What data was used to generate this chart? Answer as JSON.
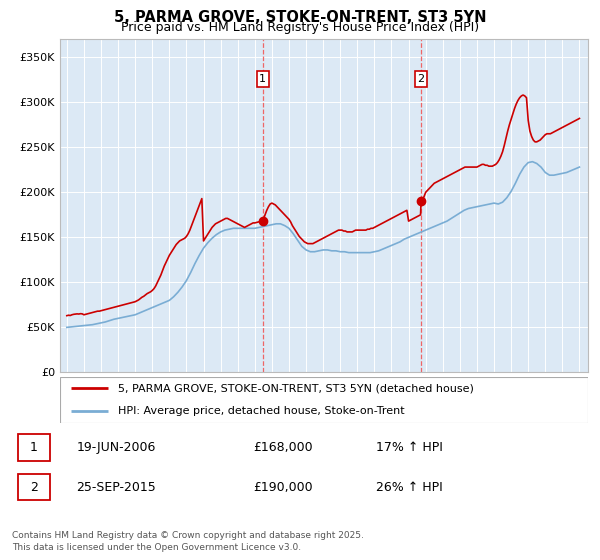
{
  "title": "5, PARMA GROVE, STOKE-ON-TRENT, ST3 5YN",
  "subtitle": "Price paid vs. HM Land Registry's House Price Index (HPI)",
  "ylim": [
    0,
    370000
  ],
  "yticks": [
    0,
    50000,
    100000,
    150000,
    200000,
    250000,
    300000,
    350000
  ],
  "ytick_labels": [
    "£0",
    "£50K",
    "£100K",
    "£150K",
    "£200K",
    "£250K",
    "£300K",
    "£350K"
  ],
  "xlim_start": 1994.6,
  "xlim_end": 2025.5,
  "plot_bg": "#dce9f5",
  "red_color": "#cc0000",
  "blue_color": "#7aadd4",
  "vline1_x": 2006.47,
  "vline2_x": 2015.73,
  "marker1_x": 2006.47,
  "marker1_y": 168000,
  "marker2_x": 2015.73,
  "marker2_y": 190000,
  "label1": "1",
  "label2": "2",
  "legend_red": "5, PARMA GROVE, STOKE-ON-TRENT, ST3 5YN (detached house)",
  "legend_blue": "HPI: Average price, detached house, Stoke-on-Trent",
  "table_row1": [
    "1",
    "19-JUN-2006",
    "£168,000",
    "17% ↑ HPI"
  ],
  "table_row2": [
    "2",
    "25-SEP-2015",
    "£190,000",
    "26% ↑ HPI"
  ],
  "footer": "Contains HM Land Registry data © Crown copyright and database right 2025.\nThis data is licensed under the Open Government Licence v3.0.",
  "hpi_years": [
    1995.0,
    1995.25,
    1995.5,
    1995.75,
    1996.0,
    1996.25,
    1996.5,
    1996.75,
    1997.0,
    1997.25,
    1997.5,
    1997.75,
    1998.0,
    1998.25,
    1998.5,
    1998.75,
    1999.0,
    1999.25,
    1999.5,
    1999.75,
    2000.0,
    2000.25,
    2000.5,
    2000.75,
    2001.0,
    2001.25,
    2001.5,
    2001.75,
    2002.0,
    2002.25,
    2002.5,
    2002.75,
    2003.0,
    2003.25,
    2003.5,
    2003.75,
    2004.0,
    2004.25,
    2004.5,
    2004.75,
    2005.0,
    2005.25,
    2005.5,
    2005.75,
    2006.0,
    2006.25,
    2006.5,
    2006.75,
    2007.0,
    2007.25,
    2007.5,
    2007.75,
    2008.0,
    2008.25,
    2008.5,
    2008.75,
    2009.0,
    2009.25,
    2009.5,
    2009.75,
    2010.0,
    2010.25,
    2010.5,
    2010.75,
    2011.0,
    2011.25,
    2011.5,
    2011.75,
    2012.0,
    2012.25,
    2012.5,
    2012.75,
    2013.0,
    2013.25,
    2013.5,
    2013.75,
    2014.0,
    2014.25,
    2014.5,
    2014.75,
    2015.0,
    2015.25,
    2015.5,
    2015.75,
    2016.0,
    2016.25,
    2016.5,
    2016.75,
    2017.0,
    2017.25,
    2017.5,
    2017.75,
    2018.0,
    2018.25,
    2018.5,
    2018.75,
    2019.0,
    2019.25,
    2019.5,
    2019.75,
    2020.0,
    2020.25,
    2020.5,
    2020.75,
    2021.0,
    2021.25,
    2021.5,
    2021.75,
    2022.0,
    2022.25,
    2022.5,
    2022.75,
    2023.0,
    2023.25,
    2023.5,
    2023.75,
    2024.0,
    2024.25,
    2024.5,
    2024.75,
    2025.0
  ],
  "hpi_values": [
    50000,
    50500,
    51000,
    51500,
    52000,
    52500,
    53000,
    54000,
    55000,
    56000,
    57500,
    59000,
    60000,
    61000,
    62000,
    63000,
    64000,
    66000,
    68000,
    70000,
    72000,
    74000,
    76000,
    78000,
    80000,
    84000,
    89000,
    95000,
    102000,
    111000,
    121000,
    130000,
    138000,
    144000,
    149000,
    153000,
    156000,
    158000,
    159000,
    160000,
    160000,
    160000,
    160000,
    160000,
    160000,
    161000,
    162000,
    163000,
    164000,
    165000,
    165000,
    163000,
    160000,
    154000,
    147000,
    140000,
    136000,
    134000,
    134000,
    135000,
    136000,
    136000,
    135000,
    135000,
    134000,
    134000,
    133000,
    133000,
    133000,
    133000,
    133000,
    133000,
    134000,
    135000,
    137000,
    139000,
    141000,
    143000,
    145000,
    148000,
    150000,
    152000,
    154000,
    156000,
    158000,
    160000,
    162000,
    164000,
    166000,
    168000,
    171000,
    174000,
    177000,
    180000,
    182000,
    183000,
    184000,
    185000,
    186000,
    187000,
    188000,
    187000,
    189000,
    194000,
    201000,
    210000,
    220000,
    228000,
    233000,
    234000,
    232000,
    228000,
    222000,
    219000,
    219000,
    220000,
    221000,
    222000,
    224000,
    226000,
    228000
  ],
  "red_years": [
    1995.0,
    1995.1,
    1995.2,
    1995.3,
    1995.4,
    1995.5,
    1995.6,
    1995.7,
    1995.8,
    1995.9,
    1996.0,
    1996.1,
    1996.2,
    1996.3,
    1996.4,
    1996.5,
    1996.6,
    1996.7,
    1996.8,
    1996.9,
    1997.0,
    1997.1,
    1997.2,
    1997.3,
    1997.4,
    1997.5,
    1997.6,
    1997.7,
    1997.8,
    1997.9,
    1998.0,
    1998.1,
    1998.2,
    1998.3,
    1998.4,
    1998.5,
    1998.6,
    1998.7,
    1998.8,
    1998.9,
    1999.0,
    1999.1,
    1999.2,
    1999.3,
    1999.4,
    1999.5,
    1999.6,
    1999.7,
    1999.8,
    1999.9,
    2000.0,
    2000.1,
    2000.2,
    2000.3,
    2000.4,
    2000.5,
    2000.6,
    2000.7,
    2000.8,
    2000.9,
    2001.0,
    2001.1,
    2001.2,
    2001.3,
    2001.4,
    2001.5,
    2001.6,
    2001.7,
    2001.8,
    2001.9,
    2002.0,
    2002.1,
    2002.2,
    2002.3,
    2002.4,
    2002.5,
    2002.6,
    2002.7,
    2002.8,
    2002.9,
    2003.0,
    2003.1,
    2003.2,
    2003.3,
    2003.4,
    2003.5,
    2003.6,
    2003.7,
    2003.8,
    2003.9,
    2004.0,
    2004.1,
    2004.2,
    2004.3,
    2004.4,
    2004.5,
    2004.6,
    2004.7,
    2004.8,
    2004.9,
    2005.0,
    2005.1,
    2005.2,
    2005.3,
    2005.4,
    2005.5,
    2005.6,
    2005.7,
    2005.8,
    2005.9,
    2006.0,
    2006.1,
    2006.2,
    2006.3,
    2006.4,
    2006.47,
    2006.6,
    2006.7,
    2006.8,
    2006.9,
    2007.0,
    2007.1,
    2007.2,
    2007.3,
    2007.4,
    2007.5,
    2007.6,
    2007.7,
    2007.8,
    2007.9,
    2008.0,
    2008.1,
    2008.2,
    2008.3,
    2008.4,
    2008.5,
    2008.6,
    2008.7,
    2008.8,
    2008.9,
    2009.0,
    2009.1,
    2009.2,
    2009.3,
    2009.4,
    2009.5,
    2009.6,
    2009.7,
    2009.8,
    2009.9,
    2010.0,
    2010.1,
    2010.2,
    2010.3,
    2010.4,
    2010.5,
    2010.6,
    2010.7,
    2010.8,
    2010.9,
    2011.0,
    2011.1,
    2011.2,
    2011.3,
    2011.4,
    2011.5,
    2011.6,
    2011.7,
    2011.8,
    2011.9,
    2012.0,
    2012.1,
    2012.2,
    2012.3,
    2012.4,
    2012.5,
    2012.6,
    2012.7,
    2012.8,
    2012.9,
    2013.0,
    2013.1,
    2013.2,
    2013.3,
    2013.4,
    2013.5,
    2013.6,
    2013.7,
    2013.8,
    2013.9,
    2014.0,
    2014.1,
    2014.2,
    2014.3,
    2014.4,
    2014.5,
    2014.6,
    2014.7,
    2014.8,
    2014.9,
    2015.0,
    2015.1,
    2015.2,
    2015.3,
    2015.4,
    2015.5,
    2015.6,
    2015.7,
    2015.73,
    2015.9,
    2016.0,
    2016.1,
    2016.2,
    2016.3,
    2016.4,
    2016.5,
    2016.6,
    2016.7,
    2016.8,
    2016.9,
    2017.0,
    2017.1,
    2017.2,
    2017.3,
    2017.4,
    2017.5,
    2017.6,
    2017.7,
    2017.8,
    2017.9,
    2018.0,
    2018.1,
    2018.2,
    2018.3,
    2018.4,
    2018.5,
    2018.6,
    2018.7,
    2018.8,
    2018.9,
    2019.0,
    2019.1,
    2019.2,
    2019.3,
    2019.4,
    2019.5,
    2019.6,
    2019.7,
    2019.8,
    2019.9,
    2020.0,
    2020.1,
    2020.2,
    2020.3,
    2020.4,
    2020.5,
    2020.6,
    2020.7,
    2020.8,
    2020.9,
    2021.0,
    2021.1,
    2021.2,
    2021.3,
    2021.4,
    2021.5,
    2021.6,
    2021.7,
    2021.8,
    2021.9,
    2022.0,
    2022.1,
    2022.2,
    2022.3,
    2022.4,
    2022.5,
    2022.6,
    2022.7,
    2022.8,
    2022.9,
    2023.0,
    2023.1,
    2023.2,
    2023.3,
    2023.4,
    2023.5,
    2023.6,
    2023.7,
    2023.8,
    2023.9,
    2024.0,
    2024.1,
    2024.2,
    2024.3,
    2024.4,
    2024.5,
    2024.6,
    2024.7,
    2024.8,
    2024.9,
    2025.0
  ],
  "red_values": [
    63000,
    63500,
    63200,
    64000,
    64500,
    64800,
    65000,
    64800,
    65200,
    65000,
    64000,
    64500,
    65000,
    65500,
    66000,
    66500,
    67000,
    67500,
    68000,
    68000,
    68500,
    69000,
    69500,
    70000,
    70500,
    71000,
    71500,
    72000,
    72500,
    73000,
    73500,
    74000,
    74500,
    75000,
    75500,
    76000,
    76500,
    77000,
    77500,
    78000,
    78500,
    79500,
    80500,
    82000,
    83500,
    84500,
    86000,
    87500,
    88500,
    89500,
    91000,
    93000,
    96000,
    100000,
    104000,
    108000,
    113000,
    118000,
    122000,
    126000,
    130000,
    133000,
    136000,
    139000,
    142000,
    144000,
    146000,
    147000,
    148000,
    149000,
    151000,
    154000,
    158000,
    163000,
    168000,
    173000,
    178000,
    183000,
    188000,
    193000,
    146000,
    149000,
    152000,
    155000,
    158000,
    161000,
    163000,
    165000,
    166000,
    167000,
    168000,
    169000,
    170000,
    171000,
    171000,
    170000,
    169000,
    168000,
    167000,
    166000,
    165000,
    164000,
    163000,
    162000,
    161000,
    162000,
    163000,
    164000,
    165000,
    166000,
    166000,
    166500,
    167000,
    167500,
    168000,
    168000,
    175000,
    180000,
    184000,
    187000,
    188000,
    187000,
    186000,
    184000,
    182000,
    180000,
    178000,
    176000,
    174000,
    172000,
    170000,
    167000,
    163000,
    160000,
    157000,
    154000,
    151000,
    149000,
    147000,
    145000,
    144000,
    143000,
    143000,
    143000,
    143000,
    144000,
    145000,
    146000,
    147000,
    148000,
    149000,
    150000,
    151000,
    152000,
    153000,
    154000,
    155000,
    156000,
    157000,
    158000,
    158000,
    158000,
    157000,
    157000,
    156000,
    156000,
    156000,
    156000,
    157000,
    158000,
    158000,
    158000,
    158000,
    158000,
    158000,
    158000,
    159000,
    159000,
    160000,
    160000,
    161000,
    162000,
    163000,
    164000,
    165000,
    166000,
    167000,
    168000,
    169000,
    170000,
    171000,
    172000,
    173000,
    174000,
    175000,
    176000,
    177000,
    178000,
    179000,
    180000,
    168000,
    169000,
    170000,
    171000,
    172000,
    173000,
    174000,
    175000,
    190000,
    195000,
    200000,
    202000,
    204000,
    206000,
    208000,
    210000,
    211000,
    212000,
    213000,
    214000,
    215000,
    216000,
    217000,
    218000,
    219000,
    220000,
    221000,
    222000,
    223000,
    224000,
    225000,
    226000,
    227000,
    228000,
    228000,
    228000,
    228000,
    228000,
    228000,
    228000,
    228000,
    229000,
    230000,
    231000,
    231000,
    230000,
    230000,
    229000,
    229000,
    229000,
    230000,
    231000,
    233000,
    236000,
    240000,
    245000,
    252000,
    260000,
    268000,
    275000,
    281000,
    287000,
    293000,
    298000,
    302000,
    305000,
    307000,
    308000,
    307000,
    305000,
    280000,
    268000,
    262000,
    258000,
    256000,
    256000,
    257000,
    258000,
    260000,
    262000,
    264000,
    265000,
    265000,
    265000,
    266000,
    267000,
    268000,
    269000,
    270000,
    271000,
    272000,
    273000,
    274000,
    275000,
    276000,
    277000,
    278000,
    279000,
    280000,
    281000,
    282000
  ]
}
